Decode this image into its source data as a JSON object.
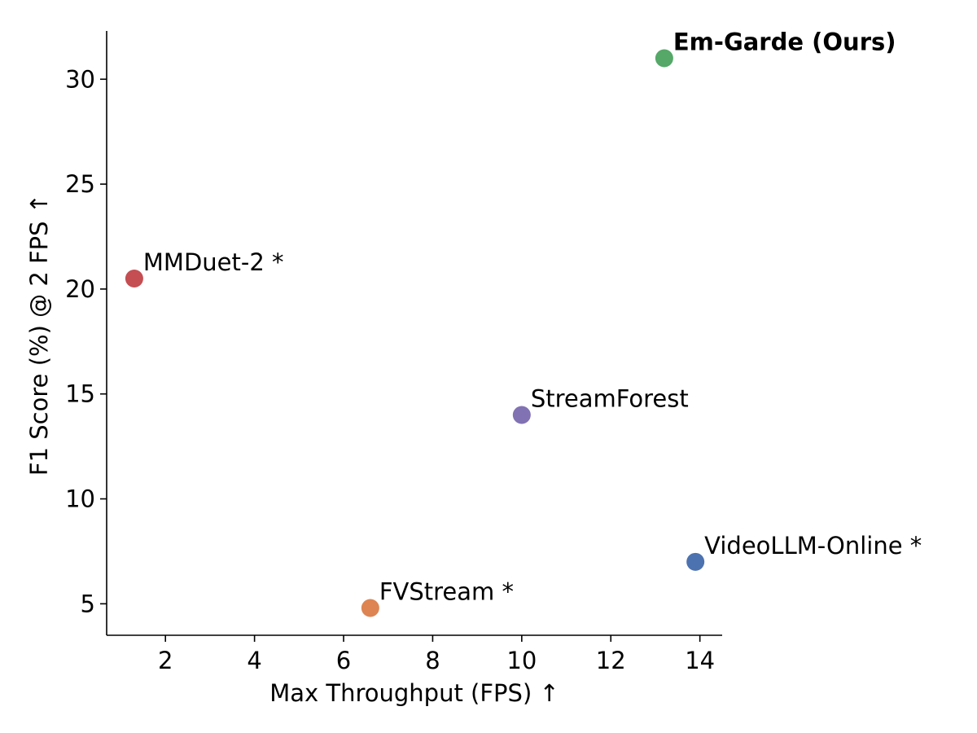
{
  "chart_data": {
    "type": "scatter",
    "title": "",
    "xlabel": "Max Throughput (FPS) ↑",
    "ylabel": "F1 Score (%) @ 2 FPS ↑",
    "xlim": [
      0.68,
      14.5
    ],
    "ylim": [
      3.5,
      32.3
    ],
    "xticks": [
      2,
      4,
      6,
      8,
      10,
      12,
      14
    ],
    "yticks": [
      5,
      10,
      15,
      20,
      25,
      30
    ],
    "grid": false,
    "legend": null,
    "points": [
      {
        "label": "Em-Garde (Ours)",
        "x": 13.2,
        "y": 31.0,
        "color": "#55a868",
        "bold": true
      },
      {
        "label": "MMDuet-2 *",
        "x": 1.3,
        "y": 20.5,
        "color": "#c44e52",
        "bold": false
      },
      {
        "label": "StreamForest",
        "x": 10.0,
        "y": 14.0,
        "color": "#8172b3",
        "bold": false
      },
      {
        "label": "VideoLLM-Online *",
        "x": 13.9,
        "y": 7.0,
        "color": "#4c72b0",
        "bold": false
      },
      {
        "label": "FVStream *",
        "x": 6.6,
        "y": 4.8,
        "color": "#dd8452",
        "bold": false
      }
    ]
  }
}
